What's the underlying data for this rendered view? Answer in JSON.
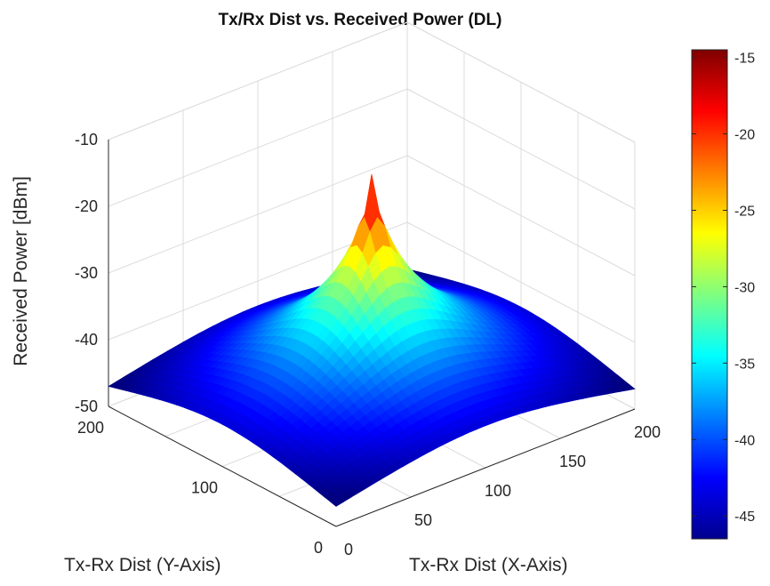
{
  "chart_data": {
    "type": "surface",
    "title": "Tx/Rx Dist vs. Received Power (DL)",
    "xlabel": "Tx-Rx Dist (X-Axis)",
    "ylabel": "Tx-Rx Dist (Y-Axis)",
    "zlabel": "Received Power [dBm]",
    "xlim": [
      0,
      200
    ],
    "ylim": [
      0,
      200
    ],
    "zlim": [
      -50,
      -10
    ],
    "x_ticks": [
      "0",
      "50",
      "100",
      "150",
      "200"
    ],
    "y_ticks": [
      "0",
      "100",
      "200"
    ],
    "z_ticks": [
      "-50",
      "-40",
      "-30",
      "-20",
      "-10"
    ],
    "colormap": "jet",
    "colorbar": {
      "limits": [
        -46.5,
        -14.5
      ],
      "ticks": [
        "-45",
        "-40",
        "-35",
        "-30",
        "-25",
        "-20",
        "-15"
      ]
    },
    "peak": {
      "x": 100,
      "y": 100,
      "z": -15
    },
    "corner_value": -47,
    "edge_midpoint_value": -43,
    "grid": true
  }
}
